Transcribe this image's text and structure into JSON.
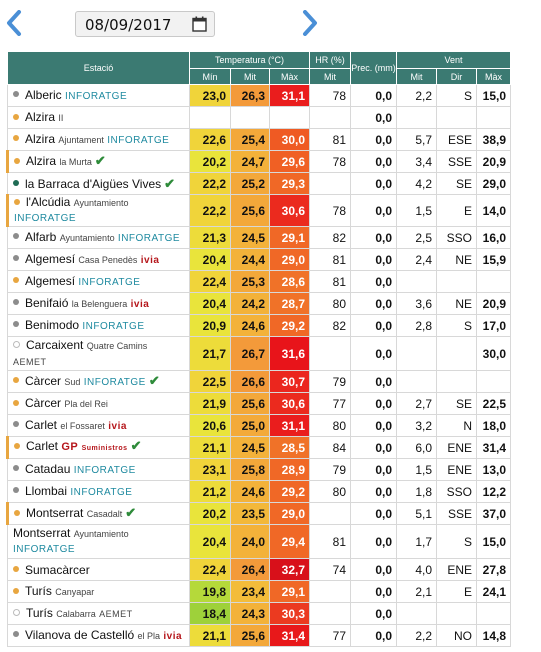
{
  "header": {
    "date": "08/09/2017"
  },
  "colors": {
    "header_bg": "#3b7a72",
    "dot_gray": "#8c8c8c",
    "dot_orange": "#e8a640",
    "dot_green": "#1f6b54",
    "inforatge": "#1f8aa0",
    "ivia": "#b5161b",
    "check": "#2e8b3a"
  },
  "table": {
    "headers": {
      "station": "Estació",
      "temperature": "Temperatura (°C)",
      "hr": "HR (%)",
      "prec": "Prec. (mm)",
      "wind": "Vent",
      "min": "Mín",
      "mit": "Mit",
      "max": "Màx",
      "hr_mit": "Mit",
      "wind_mit": "Mit",
      "wind_dir": "Dir",
      "wind_max": "Màx"
    },
    "rows": [
      {
        "name": "Alberic",
        "sub": "",
        "brand": "INFORATGE",
        "brand2": "",
        "check": false,
        "dot": "gray",
        "tall": false,
        "min": "23,0",
        "mit": "26,3",
        "max": "31,1",
        "hr": "78",
        "prec": "0,0",
        "wmit": "2,2",
        "dir": "S",
        "wmax": "15,0",
        "c_min": "#f0d43a",
        "c_mit": "#f39a3a",
        "c_max": "#ea1d1d"
      },
      {
        "name": "Alzira",
        "sub": "II",
        "brand": "",
        "brand2": "",
        "check": false,
        "dot": "orange",
        "tall": false,
        "min": "",
        "mit": "",
        "max": "",
        "hr": "",
        "prec": "0,0",
        "wmit": "",
        "dir": "",
        "wmax": "",
        "c_min": "",
        "c_mit": "",
        "c_max": ""
      },
      {
        "name": "Alzira",
        "sub": "Ajuntament",
        "brand": "INFORATGE",
        "brand2": "",
        "check": false,
        "dot": "orange",
        "tall": false,
        "min": "22,6",
        "mit": "25,4",
        "max": "30,0",
        "hr": "81",
        "prec": "0,0",
        "wmit": "5,7",
        "dir": "ESE",
        "wmax": "38,9",
        "c_min": "#f0d43a",
        "c_mit": "#f3a83a",
        "c_max": "#ef5a23"
      },
      {
        "name": "Alzira",
        "sub": "la Murta",
        "brand": "",
        "brand2": "",
        "check": true,
        "dot": "bar",
        "tall": false,
        "min": "20,2",
        "mit": "24,7",
        "max": "29,6",
        "hr": "78",
        "prec": "0,0",
        "wmit": "3,4",
        "dir": "SSE",
        "wmax": "20,9",
        "c_min": "#e9e43b",
        "c_mit": "#f3b23a",
        "c_max": "#f06024"
      },
      {
        "name": "la Barraca d'Aigües Vives",
        "sub": "",
        "brand": "",
        "brand2": "",
        "check": true,
        "dot": "green",
        "tall": false,
        "min": "22,2",
        "mit": "25,2",
        "max": "29,3",
        "hr": "",
        "prec": "0,0",
        "wmit": "4,2",
        "dir": "SE",
        "wmax": "29,0",
        "c_min": "#f0d43a",
        "c_mit": "#f3a83a",
        "c_max": "#f06826"
      },
      {
        "name": "l'Alcúdia",
        "sub": "Ayuntamiento",
        "brand": "INFORATGE",
        "brand2": "",
        "check": false,
        "dot": "bar",
        "tall": false,
        "min": "22,2",
        "mit": "25,6",
        "max": "30,6",
        "hr": "78",
        "prec": "0,0",
        "wmit": "1,5",
        "dir": "E",
        "wmax": "14,0",
        "c_min": "#f0d43a",
        "c_mit": "#f3a83a",
        "c_max": "#eb2a1e"
      },
      {
        "name": "Alfarb",
        "sub": "Ayuntamiento",
        "brand": "INFORATGE",
        "brand2": "",
        "check": false,
        "dot": "gray",
        "tall": false,
        "min": "21,3",
        "mit": "24,5",
        "max": "29,1",
        "hr": "82",
        "prec": "0,0",
        "wmit": "2,5",
        "dir": "SSO",
        "wmax": "16,0",
        "c_min": "#eddc3a",
        "c_mit": "#f3b23a",
        "c_max": "#f06826"
      },
      {
        "name": "Algemesí",
        "sub": "Casa Penedès",
        "brand": "",
        "brand2": "ivia",
        "check": false,
        "dot": "gray",
        "tall": false,
        "min": "20,4",
        "mit": "24,4",
        "max": "29,0",
        "hr": "81",
        "prec": "0,0",
        "wmit": "2,4",
        "dir": "NE",
        "wmax": "15,9",
        "c_min": "#e9e43b",
        "c_mit": "#f3b23a",
        "c_max": "#f06826"
      },
      {
        "name": "Algemesí",
        "sub": "",
        "brand": "INFORATGE",
        "brand2": "",
        "check": false,
        "dot": "orange",
        "tall": false,
        "min": "22,4",
        "mit": "25,3",
        "max": "28,6",
        "hr": "81",
        "prec": "0,0",
        "wmit": "",
        "dir": "",
        "wmax": "",
        "c_min": "#f0d43a",
        "c_mit": "#f3a83a",
        "c_max": "#f07228"
      },
      {
        "name": "Benifaió",
        "sub": "la Belenguera",
        "brand": "",
        "brand2": "ivia",
        "check": false,
        "dot": "gray",
        "tall": false,
        "min": "20,4",
        "mit": "24,2",
        "max": "28,7",
        "hr": "80",
        "prec": "0,0",
        "wmit": "3,6",
        "dir": "NE",
        "wmax": "20,9",
        "c_min": "#e9e43b",
        "c_mit": "#f3b23a",
        "c_max": "#f07228"
      },
      {
        "name": "Benimodo",
        "sub": "",
        "brand": "INFORATGE",
        "brand2": "",
        "check": false,
        "dot": "gray",
        "tall": false,
        "min": "20,9",
        "mit": "24,6",
        "max": "29,2",
        "hr": "82",
        "prec": "0,0",
        "wmit": "2,8",
        "dir": "S",
        "wmax": "17,0",
        "c_min": "#e9e43b",
        "c_mit": "#f3b23a",
        "c_max": "#f06826"
      },
      {
        "name": "Carcaixent",
        "sub": "Quatre Camins",
        "brand": "",
        "brand2": "AEMET",
        "check": false,
        "dot": "white",
        "tall": true,
        "min": "21,7",
        "mit": "26,7",
        "max": "31,6",
        "hr": "",
        "prec": "0,0",
        "wmit": "",
        "dir": "",
        "wmax": "30,0",
        "c_min": "#eddc3a",
        "c_mit": "#f39a3a",
        "c_max": "#e8141a"
      },
      {
        "name": "Càrcer",
        "sub": "Sud",
        "brand": "INFORATGE",
        "brand2": "",
        "check": true,
        "dot": "orange",
        "tall": false,
        "min": "22,5",
        "mit": "26,6",
        "max": "30,7",
        "hr": "79",
        "prec": "0,0",
        "wmit": "",
        "dir": "",
        "wmax": "",
        "c_min": "#f0d43a",
        "c_mit": "#f39a3a",
        "c_max": "#eb261e"
      },
      {
        "name": "Càrcer",
        "sub": "Pla del Rei",
        "brand": "",
        "brand2": "",
        "check": false,
        "dot": "orange",
        "tall": false,
        "min": "21,9",
        "mit": "25,6",
        "max": "30,6",
        "hr": "77",
        "prec": "0,0",
        "wmit": "2,7",
        "dir": "SE",
        "wmax": "22,5",
        "c_min": "#eddc3a",
        "c_mit": "#f3a83a",
        "c_max": "#eb2a1e"
      },
      {
        "name": "Carlet",
        "sub": "el Fossaret",
        "brand": "",
        "brand2": "ivia",
        "check": false,
        "dot": "gray",
        "tall": false,
        "min": "20,6",
        "mit": "25,0",
        "max": "31,1",
        "hr": "80",
        "prec": "0,0",
        "wmit": "3,2",
        "dir": "N",
        "wmax": "18,0",
        "c_min": "#e9e43b",
        "c_mit": "#f3aa3a",
        "c_max": "#ea1d1d"
      },
      {
        "name": "Carlet",
        "sub": "",
        "brand": "GP",
        "brand2": "Suministros",
        "check": true,
        "dot": "bar",
        "tall": false,
        "min": "21,1",
        "mit": "24,5",
        "max": "28,5",
        "hr": "84",
        "prec": "0,0",
        "wmit": "6,0",
        "dir": "ENE",
        "wmax": "31,4",
        "c_min": "#eddc3a",
        "c_mit": "#f3b23a",
        "c_max": "#f07228"
      },
      {
        "name": "Catadau",
        "sub": "",
        "brand": "INFORATGE",
        "brand2": "",
        "check": false,
        "dot": "gray",
        "tall": false,
        "min": "23,1",
        "mit": "25,8",
        "max": "28,9",
        "hr": "79",
        "prec": "0,0",
        "wmit": "1,5",
        "dir": "ENE",
        "wmax": "13,0",
        "c_min": "#f0d43a",
        "c_mit": "#f3a83a",
        "c_max": "#f06826"
      },
      {
        "name": "Llombai",
        "sub": "",
        "brand": "INFORATGE",
        "brand2": "",
        "check": false,
        "dot": "gray",
        "tall": false,
        "min": "21,2",
        "mit": "24,6",
        "max": "29,2",
        "hr": "80",
        "prec": "0,0",
        "wmit": "1,8",
        "dir": "SSO",
        "wmax": "12,2",
        "c_min": "#eddc3a",
        "c_mit": "#f3b23a",
        "c_max": "#f06826"
      },
      {
        "name": "Montserrat",
        "sub": "Casadalt",
        "brand": "",
        "brand2": "",
        "check": true,
        "dot": "bar",
        "tall": false,
        "min": "20,2",
        "mit": "23,5",
        "max": "29,0",
        "hr": "",
        "prec": "0,0",
        "wmit": "5,1",
        "dir": "SSE",
        "wmax": "37,0",
        "c_min": "#e9e43b",
        "c_mit": "#f3b83a",
        "c_max": "#f06826"
      },
      {
        "name": "Montserrat",
        "sub": "Ayuntamiento",
        "brand": "INFORATGE",
        "brand2": "",
        "check": false,
        "dot": "none",
        "tall": true,
        "min": "20,4",
        "mit": "24,0",
        "max": "29,4",
        "hr": "81",
        "prec": "0,0",
        "wmit": "1,7",
        "dir": "S",
        "wmax": "15,0",
        "c_min": "#e9e43b",
        "c_mit": "#f3b23a",
        "c_max": "#f06826"
      },
      {
        "name": "Sumacàrcer",
        "sub": "",
        "brand": "",
        "brand2": "",
        "check": false,
        "dot": "orange",
        "tall": false,
        "min": "22,4",
        "mit": "26,4",
        "max": "32,7",
        "hr": "74",
        "prec": "0,0",
        "wmit": "4,0",
        "dir": "ENE",
        "wmax": "27,8",
        "c_min": "#f0d43a",
        "c_mit": "#f39a3a",
        "c_max": "#d8101a"
      },
      {
        "name": "Turís",
        "sub": "Canyapar",
        "brand": "",
        "brand2": "",
        "check": false,
        "dot": "orange",
        "tall": false,
        "min": "19,8",
        "mit": "23,4",
        "max": "29,1",
        "hr": "",
        "prec": "0,0",
        "wmit": "2,1",
        "dir": "E",
        "wmax": "24,1",
        "c_min": "#b5d93a",
        "c_mit": "#f3bc3a",
        "c_max": "#f06826"
      },
      {
        "name": "Turís",
        "sub": "Calabarra",
        "brand": "",
        "brand2": "AEMET",
        "check": false,
        "dot": "white",
        "tall": false,
        "min": "18,4",
        "mit": "24,3",
        "max": "30,3",
        "hr": "",
        "prec": "0,0",
        "wmit": "",
        "dir": "",
        "wmax": "",
        "c_min": "#9ed13a",
        "c_mit": "#f3b23a",
        "c_max": "#eb3a20"
      },
      {
        "name": "Vilanova de Castelló",
        "sub": "el Pla",
        "brand": "",
        "brand2": "ivia",
        "check": false,
        "dot": "gray",
        "tall": false,
        "min": "21,1",
        "mit": "25,6",
        "max": "31,4",
        "hr": "77",
        "prec": "0,0",
        "wmit": "2,2",
        "dir": "NO",
        "wmax": "14,8",
        "c_min": "#eddc3a",
        "c_mit": "#f3a83a",
        "c_max": "#e8181a"
      }
    ]
  }
}
